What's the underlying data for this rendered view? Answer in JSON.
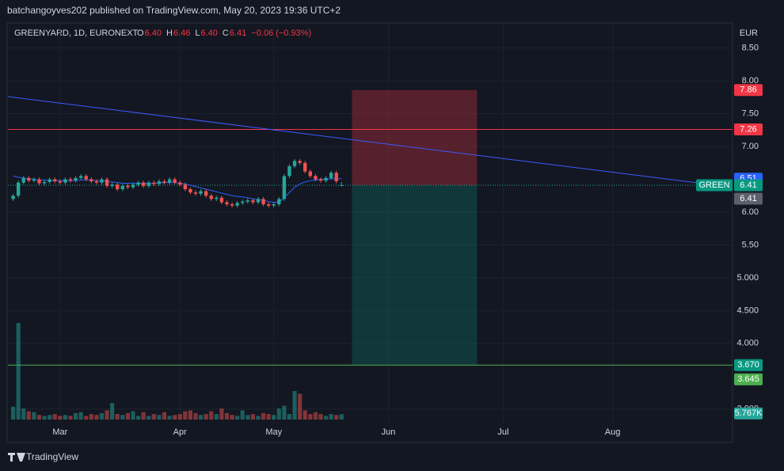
{
  "header": "batchangoyves202 published on TradingView.com, May 20, 2023 19:36 UTC+2",
  "footer": "TradingView",
  "legend": {
    "symbol": "GREENYARD, 1D, EURONEXT",
    "ohlc": [
      {
        "key": "O",
        "value": "6.40"
      },
      {
        "key": "H",
        "value": "6.46"
      },
      {
        "key": "L",
        "value": "6.40"
      },
      {
        "key": "C",
        "value": "6.41"
      }
    ],
    "change": "−0.06 (−0.93%)"
  },
  "chart_data": {
    "type": "candlestick",
    "currency": "EUR",
    "x": [
      -9,
      -8,
      -7,
      -6,
      -5,
      -4,
      -3,
      -2,
      -1,
      0,
      1,
      2,
      3,
      4,
      5,
      6,
      7,
      8,
      9,
      10,
      11,
      12,
      13,
      14,
      15,
      16,
      17,
      18,
      19,
      20,
      21,
      22,
      23,
      24,
      25,
      26,
      27,
      28,
      29,
      30,
      31,
      32,
      33,
      34,
      35,
      36,
      37,
      38,
      39,
      40,
      41,
      42,
      43,
      44,
      45,
      46,
      47,
      48,
      49,
      50,
      51,
      52,
      53,
      54
    ],
    "open": [
      6.2,
      6.25,
      6.45,
      6.52,
      6.48,
      6.5,
      6.44,
      6.46,
      6.5,
      6.47,
      6.45,
      6.5,
      6.48,
      6.52,
      6.55,
      6.5,
      6.47,
      6.45,
      6.5,
      6.4,
      6.42,
      6.35,
      6.4,
      6.38,
      6.42,
      6.45,
      6.4,
      6.45,
      6.43,
      6.47,
      6.45,
      6.5,
      6.45,
      6.42,
      6.35,
      6.3,
      6.28,
      6.32,
      6.25,
      6.2,
      6.22,
      6.15,
      6.12,
      6.1,
      6.14,
      6.16,
      6.18,
      6.15,
      6.2,
      6.12,
      6.1,
      6.12,
      6.2,
      6.55,
      6.7,
      6.78,
      6.75,
      6.62,
      6.55,
      6.5,
      6.48,
      6.52,
      6.6,
      6.4
    ],
    "high": [
      6.28,
      6.48,
      6.55,
      6.55,
      6.53,
      6.53,
      6.49,
      6.53,
      6.53,
      6.5,
      6.53,
      6.53,
      6.55,
      6.58,
      6.58,
      6.53,
      6.5,
      6.53,
      6.53,
      6.45,
      6.45,
      6.43,
      6.43,
      6.45,
      6.48,
      6.48,
      6.48,
      6.48,
      6.5,
      6.5,
      6.53,
      6.53,
      6.48,
      6.45,
      6.38,
      6.33,
      6.35,
      6.35,
      6.28,
      6.25,
      6.25,
      6.18,
      6.15,
      6.17,
      6.19,
      6.21,
      6.21,
      6.23,
      6.23,
      6.15,
      6.15,
      6.23,
      6.58,
      6.73,
      6.81,
      6.81,
      6.78,
      6.65,
      6.58,
      6.53,
      6.55,
      6.63,
      6.63,
      6.46
    ],
    "low": [
      6.17,
      6.22,
      6.42,
      6.45,
      6.45,
      6.41,
      6.41,
      6.43,
      6.44,
      6.42,
      6.42,
      6.45,
      6.45,
      6.49,
      6.47,
      6.44,
      6.42,
      6.42,
      6.37,
      6.37,
      6.32,
      6.32,
      6.35,
      6.35,
      6.39,
      6.37,
      6.37,
      6.4,
      6.4,
      6.42,
      6.42,
      6.42,
      6.39,
      6.32,
      6.27,
      6.25,
      6.25,
      6.22,
      6.17,
      6.17,
      6.12,
      6.09,
      6.07,
      6.07,
      6.11,
      6.13,
      6.12,
      6.12,
      6.09,
      6.07,
      6.07,
      6.09,
      6.17,
      6.52,
      6.67,
      6.72,
      6.59,
      6.52,
      6.47,
      6.45,
      6.45,
      6.49,
      6.44,
      6.4
    ],
    "close": [
      6.25,
      6.45,
      6.52,
      6.48,
      6.5,
      6.44,
      6.46,
      6.5,
      6.47,
      6.45,
      6.5,
      6.48,
      6.52,
      6.55,
      6.5,
      6.47,
      6.45,
      6.5,
      6.4,
      6.42,
      6.35,
      6.4,
      6.38,
      6.42,
      6.45,
      6.4,
      6.45,
      6.43,
      6.47,
      6.45,
      6.5,
      6.45,
      6.42,
      6.35,
      6.3,
      6.28,
      6.32,
      6.25,
      6.2,
      6.22,
      6.15,
      6.12,
      6.1,
      6.14,
      6.16,
      6.18,
      6.15,
      6.2,
      6.12,
      6.1,
      6.12,
      6.2,
      6.55,
      6.7,
      6.78,
      6.75,
      6.62,
      6.55,
      6.5,
      6.48,
      6.52,
      6.6,
      6.47,
      6.41
    ],
    "volume": [
      14000,
      105000,
      12000,
      9000,
      8000,
      5000,
      4000,
      5000,
      6000,
      4000,
      5000,
      4000,
      7000,
      8000,
      4000,
      6000,
      5000,
      7000,
      10000,
      18000,
      6000,
      5000,
      7000,
      9000,
      4000,
      8000,
      4000,
      6000,
      5000,
      8000,
      4000,
      5000,
      6000,
      9000,
      10000,
      7000,
      5000,
      6000,
      9000,
      6000,
      12000,
      7000,
      5000,
      4000,
      10000,
      5000,
      6000,
      4000,
      7000,
      6000,
      5000,
      12000,
      15000,
      6000,
      31000,
      28000,
      10000,
      6000,
      8000,
      6000,
      4000,
      6000,
      5000,
      5767
    ],
    "volume_value_label": "5.767K",
    "moving_average": {
      "color": "#2962ff",
      "values": [
        6.55,
        6.53,
        6.52,
        6.51,
        6.5,
        6.49,
        6.49,
        6.48,
        6.48,
        6.48,
        6.48,
        6.48,
        6.48,
        6.49,
        6.49,
        6.49,
        6.48,
        6.48,
        6.47,
        6.46,
        6.45,
        6.44,
        6.44,
        6.44,
        6.44,
        6.44,
        6.44,
        6.44,
        6.44,
        6.45,
        6.45,
        6.45,
        6.44,
        6.43,
        6.41,
        6.39,
        6.37,
        6.35,
        6.33,
        6.31,
        6.29,
        6.27,
        6.25,
        6.24,
        6.23,
        6.22,
        6.2,
        6.19,
        6.18,
        6.16,
        6.15,
        6.15,
        6.22,
        6.3,
        6.38,
        6.43,
        6.46,
        6.48,
        6.49,
        6.5,
        6.5,
        6.51,
        6.51,
        6.51
      ]
    },
    "trend_line": {
      "color": "#3d5afe",
      "x": [
        -10,
        129
      ],
      "values": [
        7.76,
        6.38
      ]
    },
    "horizontal_lines": [
      {
        "value": 7.26,
        "color": "#f23645"
      },
      {
        "value": 3.67,
        "color": "#4caf50"
      }
    ],
    "position": {
      "x": [
        56,
        80
      ],
      "target": 7.86,
      "entry": 6.41,
      "stop": 3.67
    },
    "price_labels": [
      {
        "value": 7.86,
        "label": "7.86",
        "color": "#f23645"
      },
      {
        "value": 7.26,
        "label": "7.26",
        "color": "#f23645"
      },
      {
        "value": 6.51,
        "label": "6.51",
        "color": "#2962ff"
      },
      {
        "value": 6.41,
        "label": "6.41",
        "color": "#089981",
        "tag": "GREEN"
      },
      {
        "value": 6.41,
        "label": "6.41",
        "color": "#5d606b"
      },
      {
        "value": 3.67,
        "label": "3.670",
        "color": "#089981"
      },
      {
        "value": 3.645,
        "label": "3.645",
        "color": "#4caf50"
      }
    ],
    "up_color": "#26a69a",
    "down_color": "#ef5350",
    "xlim": [
      -10,
      129
    ],
    "xticks": [
      {
        "value": 0,
        "label": "Mar"
      },
      {
        "value": 23,
        "label": "Apr"
      },
      {
        "value": 41,
        "label": "May"
      },
      {
        "value": 63,
        "label": "Jun"
      },
      {
        "value": 85,
        "label": "Jul"
      },
      {
        "value": 106,
        "label": "Aug"
      }
    ],
    "ylim": [
      2.78,
      8.87
    ],
    "yticks": [
      {
        "value": 8.5,
        "label": "8.50"
      },
      {
        "value": 8,
        "label": "8.00"
      },
      {
        "value": 7.5,
        "label": "7.50"
      },
      {
        "value": 7,
        "label": "7.00"
      },
      {
        "value": 6,
        "label": "6.00"
      },
      {
        "value": 5.5,
        "label": "5.50"
      },
      {
        "value": 5,
        "label": "5.000"
      },
      {
        "value": 4.5,
        "label": "4.500"
      },
      {
        "value": 4,
        "label": "4.000"
      },
      {
        "value": 3,
        "label": "3.000"
      }
    ],
    "grid": true
  }
}
